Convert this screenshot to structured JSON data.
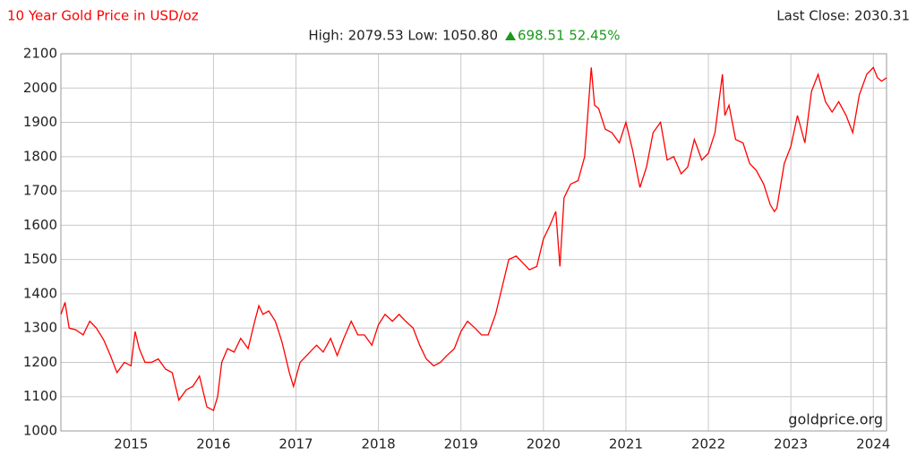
{
  "chart_data": {
    "type": "line",
    "title": "10 Year Gold Price in USD/oz",
    "last_close": "Last Close: 2030.31",
    "stats": "High: 2079.53 Low: 1050.80",
    "change": "698.51 52.45%",
    "source": "goldprice.org",
    "color": "#ff0000",
    "grid": true,
    "xlim": [
      2014.15,
      2024.16
    ],
    "xticks": [
      2015,
      2016,
      2017,
      2018,
      2019,
      2020,
      2021,
      2022,
      2023,
      2024
    ],
    "ylim": [
      1000,
      2100
    ],
    "yticks": [
      1000,
      1100,
      1200,
      1300,
      1400,
      1500,
      1600,
      1700,
      1800,
      1900,
      2000,
      2100
    ],
    "x": [
      2014.15,
      2014.2,
      2014.25,
      2014.33,
      2014.42,
      2014.5,
      2014.58,
      2014.67,
      2014.75,
      2014.83,
      2014.92,
      2015.0,
      2015.05,
      2015.1,
      2015.17,
      2015.25,
      2015.33,
      2015.42,
      2015.5,
      2015.58,
      2015.67,
      2015.75,
      2015.83,
      2015.92,
      2016.0,
      2016.05,
      2016.1,
      2016.17,
      2016.25,
      2016.33,
      2016.42,
      2016.5,
      2016.55,
      2016.6,
      2016.67,
      2016.75,
      2016.83,
      2016.92,
      2016.97,
      2017.05,
      2017.17,
      2017.25,
      2017.33,
      2017.42,
      2017.5,
      2017.58,
      2017.67,
      2017.75,
      2017.83,
      2017.92,
      2018.0,
      2018.08,
      2018.17,
      2018.25,
      2018.33,
      2018.42,
      2018.5,
      2018.58,
      2018.67,
      2018.75,
      2018.83,
      2018.92,
      2019.0,
      2019.08,
      2019.17,
      2019.25,
      2019.33,
      2019.42,
      2019.5,
      2019.58,
      2019.67,
      2019.75,
      2019.83,
      2019.92,
      2020.0,
      2020.08,
      2020.15,
      2020.2,
      2020.25,
      2020.33,
      2020.42,
      2020.5,
      2020.58,
      2020.62,
      2020.67,
      2020.75,
      2020.83,
      2020.92,
      2021.0,
      2021.08,
      2021.17,
      2021.25,
      2021.33,
      2021.42,
      2021.5,
      2021.58,
      2021.67,
      2021.75,
      2021.83,
      2021.92,
      2022.0,
      2022.08,
      2022.17,
      2022.2,
      2022.25,
      2022.33,
      2022.42,
      2022.5,
      2022.58,
      2022.67,
      2022.75,
      2022.8,
      2022.83,
      2022.92,
      2023.0,
      2023.08,
      2023.17,
      2023.25,
      2023.33,
      2023.42,
      2023.5,
      2023.58,
      2023.67,
      2023.75,
      2023.83,
      2023.92,
      2024.0,
      2024.05,
      2024.1,
      2024.16
    ],
    "values": [
      1340,
      1375,
      1300,
      1295,
      1280,
      1320,
      1300,
      1265,
      1220,
      1170,
      1200,
      1190,
      1290,
      1240,
      1200,
      1200,
      1210,
      1180,
      1170,
      1090,
      1120,
      1130,
      1160,
      1070,
      1060,
      1100,
      1200,
      1240,
      1230,
      1270,
      1240,
      1320,
      1365,
      1340,
      1350,
      1320,
      1260,
      1170,
      1130,
      1200,
      1230,
      1250,
      1230,
      1270,
      1220,
      1270,
      1320,
      1280,
      1280,
      1250,
      1310,
      1340,
      1320,
      1340,
      1320,
      1300,
      1250,
      1210,
      1190,
      1200,
      1220,
      1240,
      1290,
      1320,
      1300,
      1280,
      1280,
      1340,
      1420,
      1500,
      1510,
      1490,
      1470,
      1480,
      1560,
      1600,
      1640,
      1480,
      1680,
      1720,
      1730,
      1800,
      2060,
      1950,
      1940,
      1880,
      1870,
      1840,
      1900,
      1820,
      1710,
      1770,
      1870,
      1900,
      1790,
      1800,
      1750,
      1770,
      1850,
      1790,
      1810,
      1870,
      2040,
      1920,
      1950,
      1850,
      1840,
      1780,
      1760,
      1720,
      1660,
      1640,
      1650,
      1780,
      1830,
      1920,
      1840,
      1990,
      2040,
      1960,
      1930,
      1960,
      1920,
      1870,
      1980,
      2040,
      2060,
      2030,
      2020,
      2030
    ]
  }
}
